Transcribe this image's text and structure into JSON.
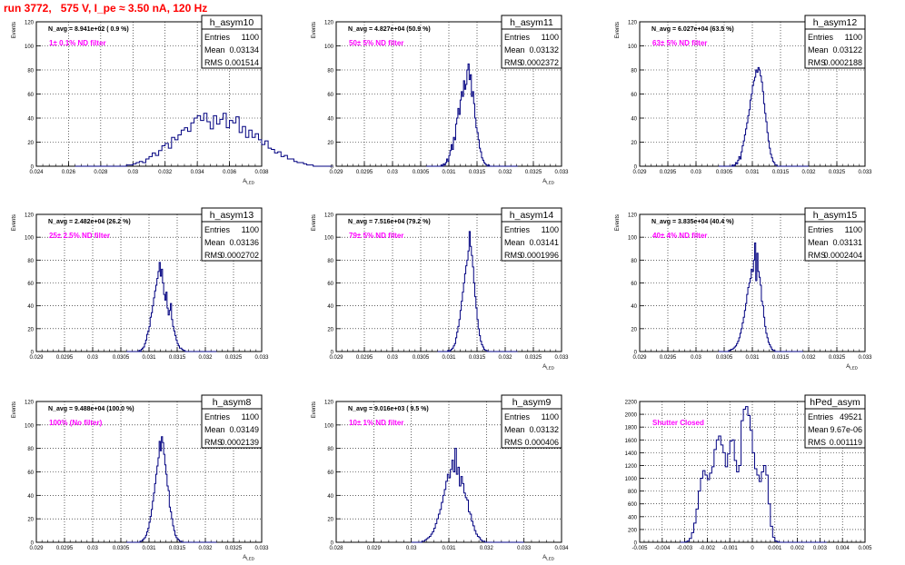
{
  "header": {
    "title": "run 3772,   575 V, I_pe ≈ 3.50 nA, 120 Hz"
  },
  "colors": {
    "histogram_line": "#000080",
    "annotation_pink": "#ff00ff",
    "title_red": "#ff0000",
    "grid": "#000000"
  },
  "chart_data": [
    {
      "type": "histogram",
      "name": "h_asym10",
      "stats": {
        "entries": "1100",
        "mean": "0.03134",
        "rms": "0.001514"
      },
      "navg_text": "N_avg = 8.941e+02 ( 0.9 %)",
      "annotation": "1± 0.1% ND filter",
      "xlabel": "A_LED",
      "ylabel": "Events",
      "xlim": [
        0.024,
        0.038
      ],
      "ylim": [
        0,
        120
      ],
      "xticks": [
        "0.024",
        "0.026",
        "0.028",
        "0.03",
        "0.032",
        "0.034",
        "0.036",
        "0.038"
      ],
      "yticks": [
        "0",
        "20",
        "40",
        "60",
        "80",
        "100",
        "120"
      ],
      "grid": true,
      "bins": {
        "start": 0.0264,
        "width": 0.0002,
        "counts": [
          0,
          0,
          0,
          0,
          0,
          0,
          0,
          0,
          0,
          0,
          0,
          0,
          0,
          0,
          0,
          0,
          1,
          1,
          2,
          3,
          4,
          3,
          6,
          8,
          11,
          9,
          13,
          17,
          19,
          15,
          24,
          22,
          26,
          30,
          32,
          29,
          36,
          40,
          42,
          38,
          44,
          37,
          31,
          42,
          35,
          39,
          44,
          32,
          38,
          36,
          41,
          28,
          33,
          24,
          30,
          24,
          27,
          22,
          18,
          21,
          15,
          14,
          11,
          12,
          8,
          9,
          6,
          6,
          4,
          3,
          3,
          2,
          1,
          1,
          0,
          0,
          0,
          0,
          0,
          0
        ]
      }
    },
    {
      "type": "histogram",
      "name": "h_asym11",
      "stats": {
        "entries": "1100",
        "mean": "0.03132",
        "rms": "0.0002372"
      },
      "navg_text": "N_avg = 4.827e+04 (50.9 %)",
      "annotation": "50± 5% ND filter",
      "xlabel": "A_LED",
      "ylabel": "Events",
      "xlim": [
        0.029,
        0.033
      ],
      "ylim": [
        0,
        120
      ],
      "xticks": [
        "0.029",
        "0.0295",
        "0.03",
        "0.0305",
        "0.031",
        "0.0315",
        "0.032",
        "0.0325",
        "0.033"
      ],
      "yticks": [
        "0",
        "20",
        "40",
        "60",
        "80",
        "100",
        "120"
      ],
      "grid": true,
      "bins": {
        "start": 0.0306,
        "width": 2e-05,
        "counts": [
          0,
          0,
          0,
          0,
          0,
          0,
          0,
          0,
          0,
          0,
          0,
          0,
          0,
          1,
          0,
          2,
          1,
          3,
          6,
          4,
          9,
          13,
          18,
          14,
          24,
          22,
          35,
          40,
          48,
          43,
          55,
          62,
          58,
          71,
          64,
          68,
          80,
          85,
          72,
          76,
          58,
          62,
          52,
          40,
          32,
          28,
          22,
          15,
          12,
          7,
          5,
          3,
          2,
          1,
          0,
          1,
          0,
          0,
          0,
          0,
          0,
          0,
          0,
          0,
          0,
          0,
          0,
          0,
          0,
          0,
          0,
          0,
          0,
          0,
          0,
          0,
          0,
          0,
          0,
          0,
          0
        ]
      }
    },
    {
      "type": "histogram",
      "name": "h_asym12",
      "stats": {
        "entries": "1100",
        "mean": "0.03122",
        "rms": "0.0002188"
      },
      "navg_text": "N_avg = 6.027e+04 (63.5 %)",
      "annotation": "63± 5% ND filter",
      "xlabel": "",
      "ylabel": "Events",
      "xlim": [
        0.029,
        0.033
      ],
      "ylim": [
        0,
        120
      ],
      "xticks": [
        "0.029",
        "0.0295",
        "0.03",
        "0.0305",
        "0.031",
        "0.0315",
        "0.032",
        "0.0325",
        "0.033"
      ],
      "yticks": [
        "0",
        "20",
        "40",
        "60",
        "80",
        "100",
        "120"
      ],
      "grid": true,
      "bins": {
        "start": 0.0304,
        "width": 2e-05,
        "counts": [
          0,
          0,
          0,
          0,
          0,
          0,
          0,
          0,
          0,
          0,
          0,
          0,
          1,
          0,
          1,
          3,
          2,
          5,
          8,
          6,
          12,
          17,
          21,
          26,
          31,
          36,
          42,
          47,
          55,
          60,
          67,
          71,
          74,
          80,
          78,
          82,
          80,
          75,
          70,
          62,
          52,
          44,
          37,
          28,
          21,
          15,
          10,
          7,
          4,
          3,
          1,
          1,
          0,
          0,
          0,
          0,
          0,
          0,
          0,
          0,
          0,
          0,
          0,
          0,
          0,
          0,
          0,
          0,
          0,
          0,
          0,
          0,
          0,
          0,
          0,
          0,
          0,
          0,
          0,
          0
        ]
      }
    },
    {
      "type": "histogram",
      "name": "h_asym13",
      "stats": {
        "entries": "1100",
        "mean": "0.03136",
        "rms": "0.0002702"
      },
      "navg_text": "N_avg = 2.482e+04 (26.2 %)",
      "annotation": "25± 2.5% ND filter",
      "xlabel": "",
      "ylabel": "Events",
      "xlim": [
        0.029,
        0.033
      ],
      "ylim": [
        0,
        120
      ],
      "xticks": [
        "0.029",
        "0.0295",
        "0.03",
        "0.0305",
        "0.031",
        "0.0315",
        "0.032",
        "0.0325",
        "0.033"
      ],
      "yticks": [
        "0",
        "20",
        "40",
        "60",
        "80",
        "100",
        "120"
      ],
      "grid": true,
      "bins": {
        "start": 0.0306,
        "width": 2e-05,
        "counts": [
          0,
          0,
          0,
          0,
          0,
          0,
          0,
          0,
          0,
          0,
          0,
          1,
          0,
          2,
          3,
          4,
          7,
          10,
          15,
          18,
          22,
          30,
          34,
          40,
          47,
          53,
          58,
          64,
          70,
          78,
          66,
          72,
          60,
          50,
          45,
          52,
          38,
          32,
          36,
          42,
          28,
          22,
          18,
          14,
          10,
          7,
          5,
          3,
          3,
          2,
          1,
          1,
          0,
          0,
          0,
          0,
          0,
          0,
          0,
          0,
          0,
          0,
          0,
          0,
          0,
          0,
          0,
          0,
          0,
          0,
          0,
          0,
          0,
          0,
          0,
          0,
          0,
          0,
          0,
          0
        ]
      }
    },
    {
      "type": "histogram",
      "name": "h_asym14",
      "stats": {
        "entries": "1100",
        "mean": "0.03141",
        "rms": "0.0001996"
      },
      "navg_text": "N_avg = 7.516e+04 (79.2 %)",
      "annotation": "79± 5% ND filter",
      "xlabel": "A_LED",
      "ylabel": "Events",
      "xlim": [
        0.029,
        0.033
      ],
      "ylim": [
        0,
        120
      ],
      "xticks": [
        "0.029",
        "0.0295",
        "0.03",
        "0.0305",
        "0.031",
        "0.0315",
        "0.032",
        "0.0325",
        "0.033"
      ],
      "yticks": [
        "0",
        "20",
        "40",
        "60",
        "80",
        "100",
        "120"
      ],
      "grid": true,
      "bins": {
        "start": 0.0308,
        "width": 2e-05,
        "counts": [
          0,
          0,
          0,
          0,
          0,
          0,
          0,
          0,
          0,
          1,
          0,
          1,
          2,
          3,
          5,
          7,
          12,
          17,
          22,
          28,
          36,
          44,
          52,
          60,
          68,
          75,
          80,
          88,
          105,
          92,
          84,
          74,
          60,
          48,
          38,
          28,
          20,
          14,
          9,
          6,
          4,
          2,
          1,
          1,
          0,
          0,
          0,
          0,
          0,
          0,
          0,
          0,
          0,
          0,
          0,
          0,
          0,
          0,
          0,
          0,
          0,
          0,
          0,
          0,
          0,
          0,
          0,
          0,
          0,
          0,
          0
        ]
      }
    },
    {
      "type": "histogram",
      "name": "h_asym15",
      "stats": {
        "entries": "1100",
        "mean": "0.03131",
        "rms": "0.0002404"
      },
      "navg_text": "N_avg = 3.835e+04 (40.4 %)",
      "annotation": "40± 4% ND filter",
      "xlabel": "A_LED",
      "ylabel": "Events",
      "xlim": [
        0.029,
        0.033
      ],
      "ylim": [
        0,
        120
      ],
      "xticks": [
        "0.029",
        "0.0295",
        "0.03",
        "0.0305",
        "0.031",
        "0.0315",
        "0.032",
        "0.0325",
        "0.033"
      ],
      "yticks": [
        "0",
        "20",
        "40",
        "60",
        "80",
        "100",
        "120"
      ],
      "grid": true,
      "bins": {
        "start": 0.0304,
        "width": 2e-05,
        "counts": [
          0,
          0,
          0,
          0,
          0,
          0,
          0,
          0,
          0,
          1,
          1,
          2,
          2,
          3,
          4,
          5,
          7,
          9,
          12,
          16,
          20,
          25,
          30,
          36,
          42,
          50,
          56,
          60,
          64,
          72,
          70,
          80,
          95,
          62,
          86,
          70,
          65,
          58,
          44,
          40,
          30,
          22,
          16,
          12,
          8,
          6,
          4,
          2,
          1,
          1,
          0,
          0,
          0,
          0,
          0,
          0,
          0,
          0,
          0,
          0,
          0,
          0,
          0,
          0,
          0,
          0,
          0,
          0,
          0,
          0,
          0,
          0,
          0,
          0,
          0
        ]
      }
    },
    {
      "type": "histogram",
      "name": "h_asym8",
      "stats": {
        "entries": "1100",
        "mean": "0.03149",
        "rms": "0.0002139"
      },
      "navg_text": "N_avg = 9.488e+04 (100.0 %)",
      "annotation": "100% (No filter)",
      "xlabel": "A_LED",
      "ylabel": "Events",
      "xlim": [
        0.029,
        0.033
      ],
      "ylim": [
        0,
        120
      ],
      "xticks": [
        "0.029",
        "0.0295",
        "0.03",
        "0.0305",
        "0.031",
        "0.0315",
        "0.032",
        "0.0325",
        "0.033"
      ],
      "yticks": [
        "0",
        "20",
        "40",
        "60",
        "80",
        "100",
        "120"
      ],
      "grid": true,
      "bins": {
        "start": 0.0306,
        "width": 2e-05,
        "counts": [
          0,
          0,
          0,
          0,
          0,
          0,
          0,
          0,
          0,
          0,
          0,
          0,
          1,
          1,
          2,
          3,
          4,
          6,
          9,
          12,
          17,
          22,
          28,
          35,
          42,
          50,
          58,
          65,
          72,
          86,
          78,
          90,
          85,
          75,
          66,
          58,
          48,
          44,
          30,
          26,
          20,
          14,
          10,
          6,
          4,
          3,
          2,
          1,
          1,
          0,
          0,
          0,
          0,
          0,
          0,
          0,
          0,
          0,
          0,
          0,
          0,
          0,
          0,
          0,
          0,
          0,
          0,
          0,
          0,
          0,
          0,
          0,
          0,
          0,
          0,
          0,
          0,
          0,
          0,
          0
        ]
      }
    },
    {
      "type": "histogram",
      "name": "h_asym9",
      "stats": {
        "entries": "1100",
        "mean": "0.03132",
        "rms": "0.000406"
      },
      "navg_text": "N_avg = 9.016e+03 ( 9.5 %)",
      "annotation": "10± 1% ND filter",
      "xlabel": "A_LED",
      "ylabel": "Events",
      "xlim": [
        0.028,
        0.034
      ],
      "ylim": [
        0,
        120
      ],
      "xticks": [
        "0.028",
        "0.029",
        "0.03",
        "0.031",
        "0.032",
        "0.033",
        "0.034"
      ],
      "yticks": [
        "0",
        "20",
        "40",
        "60",
        "80",
        "100",
        "120"
      ],
      "grid": true,
      "bins": {
        "start": 0.03,
        "width": 4e-05,
        "counts": [
          0,
          0,
          0,
          0,
          0,
          0,
          0,
          1,
          1,
          2,
          3,
          4,
          5,
          7,
          9,
          12,
          16,
          20,
          24,
          28,
          34,
          40,
          45,
          52,
          58,
          55,
          62,
          70,
          60,
          80,
          58,
          64,
          48,
          56,
          50,
          42,
          38,
          36,
          26,
          24,
          18,
          14,
          10,
          7,
          5,
          4,
          2,
          1,
          1,
          0,
          0,
          0,
          0,
          0,
          0,
          0,
          0,
          0,
          0,
          0,
          0,
          0,
          0,
          0,
          0,
          0,
          0,
          0,
          0,
          0,
          0,
          0,
          0,
          0,
          0
        ]
      }
    },
    {
      "type": "histogram",
      "name": "hPed_asym",
      "stats": {
        "entries": "49521",
        "mean": "9.67e-06",
        "rms": "0.001119"
      },
      "navg_text": "",
      "annotation": "Shutter Closed",
      "xlabel": "",
      "ylabel": "",
      "xlim": [
        -0.005,
        0.005
      ],
      "ylim": [
        0,
        2200
      ],
      "xticks": [
        "-0.005",
        "-0.004",
        "-0.003",
        "-0.002",
        "-0.001",
        "0",
        "0.001",
        "0.002",
        "0.003",
        "0.004",
        "0.005"
      ],
      "yticks": [
        "0",
        "200",
        "400",
        "600",
        "800",
        "1000",
        "1200",
        "1400",
        "1600",
        "1800",
        "2000",
        "2200"
      ],
      "grid": true,
      "bins": {
        "start": -0.0032,
        "width": 0.0001,
        "counts": [
          0,
          0,
          5,
          20,
          60,
          150,
          300,
          520,
          800,
          1000,
          1120,
          1050,
          980,
          1080,
          1180,
          1450,
          1600,
          1660,
          1520,
          1400,
          1180,
          1380,
          1580,
          1600,
          1280,
          1100,
          1200,
          1900,
          2080,
          2120,
          1980,
          1750,
          1400,
          1150,
          1050,
          950,
          1100,
          1200,
          1050,
          600,
          250,
          80,
          20,
          5,
          0,
          0,
          0,
          0,
          0,
          0,
          0,
          0,
          0,
          0,
          0,
          0,
          0,
          0,
          0,
          0,
          0,
          0,
          0,
          0,
          0
        ]
      }
    }
  ]
}
